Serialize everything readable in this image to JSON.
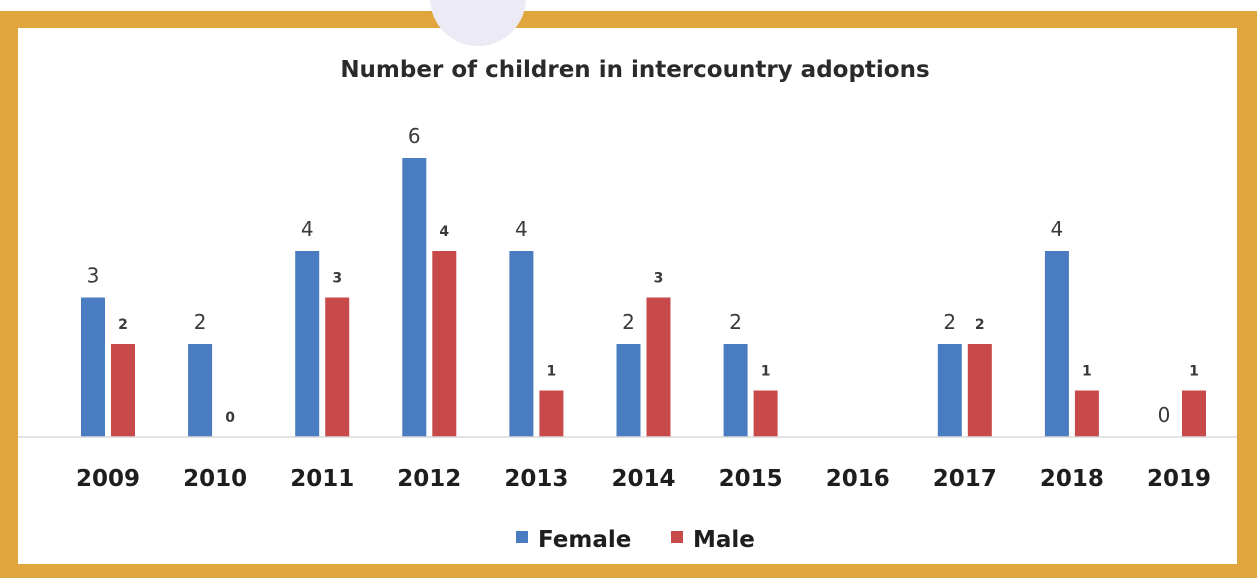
{
  "chart_data": {
    "type": "bar",
    "title": "Number of children in intercountry adoptions",
    "categories": [
      "2009",
      "2010",
      "2011",
      "2012",
      "2013",
      "2014",
      "2015",
      "2016",
      "2017",
      "2018",
      "2019"
    ],
    "series": [
      {
        "name": "Female",
        "color": "#4a7cc2",
        "values": [
          3,
          2,
          4,
          6,
          4,
          2,
          2,
          null,
          2,
          4,
          0
        ],
        "labels": [
          "3",
          "2",
          "4",
          "6",
          "4",
          "2",
          "2",
          "",
          "2",
          "4",
          "0"
        ]
      },
      {
        "name": "Male",
        "color": "#c8494a",
        "values": [
          2,
          0,
          3,
          4,
          1,
          3,
          1,
          null,
          2,
          1,
          1
        ],
        "labels": [
          "2",
          "0",
          "3",
          "4",
          "1",
          "3",
          "1",
          "",
          "2",
          "1",
          "1"
        ]
      }
    ],
    "ylim": [
      0,
      6
    ],
    "grid": false,
    "legend_position": "bottom"
  }
}
